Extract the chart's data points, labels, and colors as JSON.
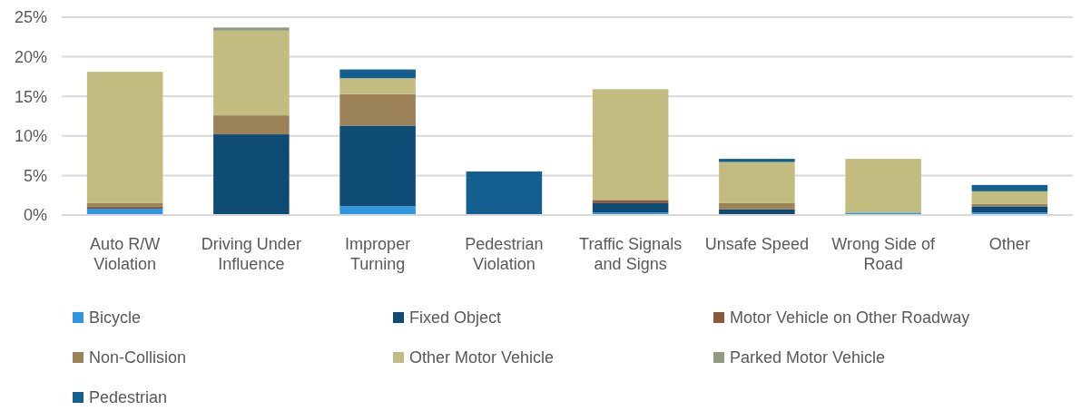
{
  "chart_data": {
    "type": "bar",
    "stacked": true,
    "categories": [
      "Auto R/W Violation",
      "Driving Under Influence",
      "Improper Turning",
      "Pedestrian Violation",
      "Traffic Signals and Signs",
      "Unsafe Speed",
      "Wrong Side of Road",
      "Other"
    ],
    "series": [
      {
        "name": "Bicycle",
        "color": "#2f96e0",
        "values": [
          0.8,
          0,
          1.1,
          0,
          0.3,
          0,
          0.3,
          0.3
        ]
      },
      {
        "name": "Fixed Object",
        "color": "#0f4c75",
        "values": [
          0,
          10.2,
          10.2,
          0,
          1.2,
          0.7,
          0,
          0.8
        ]
      },
      {
        "name": "Motor Vehicle on Other Roadway",
        "color": "#8b5a3c",
        "values": [
          0.3,
          0,
          0,
          0,
          0.4,
          0,
          0,
          0
        ]
      },
      {
        "name": "Non-Collision",
        "color": "#9b8257",
        "values": [
          0.4,
          2.4,
          4.0,
          0,
          0,
          0.8,
          0,
          0.3
        ]
      },
      {
        "name": "Other Motor Vehicle",
        "color": "#c2bc81",
        "values": [
          16.6,
          10.7,
          2.0,
          0,
          14.0,
          5.2,
          6.8,
          1.6
        ]
      },
      {
        "name": "Parked Motor Vehicle",
        "color": "#939b82",
        "values": [
          0,
          0.4,
          0,
          0,
          0,
          0,
          0,
          0
        ]
      },
      {
        "name": "Pedestrian",
        "color": "#125f90",
        "values": [
          0,
          0,
          1.1,
          5.5,
          0,
          0.4,
          0,
          0.8
        ]
      }
    ],
    "ylim": [
      0,
      25
    ],
    "yticks": [
      {
        "value": 0,
        "label": "0%"
      },
      {
        "value": 5,
        "label": "5%"
      },
      {
        "value": 10,
        "label": "10%"
      },
      {
        "value": 15,
        "label": "15%"
      },
      {
        "value": 20,
        "label": "20%"
      },
      {
        "value": 25,
        "label": "25%"
      }
    ],
    "grid": "y",
    "legend": "bottom"
  }
}
